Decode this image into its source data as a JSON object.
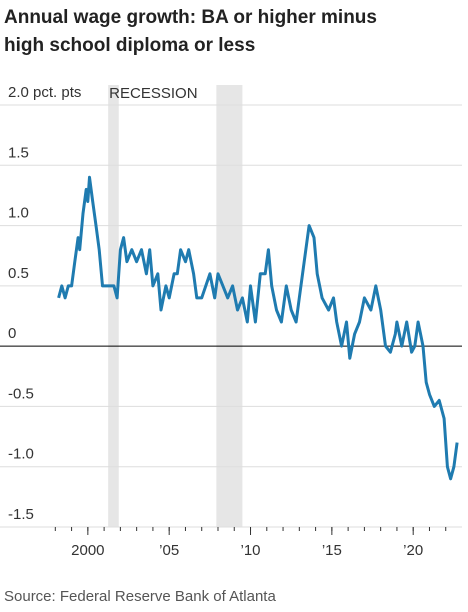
{
  "chart_data": {
    "type": "line",
    "title_lines": [
      "Annual wage growth: BA or higher minus",
      "high school diploma or less"
    ],
    "source": "Source: Federal Reserve Bank of Atlanta",
    "annotation": "RECESSION",
    "recessions": [
      [
        2001.25,
        2001.9
      ],
      [
        2007.9,
        2009.5
      ]
    ],
    "color": "#1f7bb0",
    "grid": true,
    "xlim": [
      1994.6,
      2023
    ],
    "ylim": [
      -1.5,
      2.0
    ],
    "xticks": [
      2000,
      {
        "value": 2005,
        "label": "’05"
      },
      {
        "value": 2010,
        "label": "’10"
      },
      {
        "value": 2015,
        "label": "’15"
      },
      {
        "value": 2020,
        "label": "’20"
      }
    ],
    "xticks_minor": [
      1998,
      1999,
      2000,
      2001,
      2002,
      2003,
      2004,
      2005,
      2006,
      2007,
      2008,
      2009,
      2010,
      2011,
      2012,
      2013,
      2014,
      2015,
      2016,
      2017,
      2018,
      2019,
      2020,
      2021,
      2022
    ],
    "yticks": [
      {
        "value": 2.0,
        "label": "2.0 pct. pts"
      },
      1.5,
      {
        "value": 1.0,
        "label": "1.0"
      },
      0.5,
      0,
      -0.5,
      {
        "value": -1.0,
        "label": "-1.0"
      },
      -1.5
    ],
    "x": [
      1998.2,
      1998.4,
      1998.6,
      1998.8,
      1999.0,
      1999.2,
      1999.4,
      1999.5,
      1999.7,
      1999.9,
      2000.0,
      2000.1,
      2000.3,
      2000.5,
      2000.7,
      2000.9,
      2001.2,
      2001.6,
      2001.8,
      2002.0,
      2002.2,
      2002.4,
      2002.7,
      2003.0,
      2003.3,
      2003.6,
      2003.8,
      2004.0,
      2004.3,
      2004.5,
      2004.8,
      2005.0,
      2005.3,
      2005.5,
      2005.7,
      2006.0,
      2006.2,
      2006.5,
      2006.7,
      2007.0,
      2007.5,
      2007.8,
      2008.0,
      2008.3,
      2008.6,
      2008.9,
      2009.2,
      2009.5,
      2009.8,
      2010.0,
      2010.3,
      2010.6,
      2010.9,
      2011.1,
      2011.3,
      2011.6,
      2011.9,
      2012.2,
      2012.5,
      2012.8,
      2013.0,
      2013.3,
      2013.6,
      2013.9,
      2014.1,
      2014.4,
      2014.8,
      2015.1,
      2015.3,
      2015.6,
      2015.9,
      2016.1,
      2016.4,
      2016.7,
      2017.0,
      2017.4,
      2017.7,
      2018.0,
      2018.3,
      2018.6,
      2018.9,
      2019.0,
      2019.3,
      2019.6,
      2019.9,
      2020.1,
      2020.3,
      2020.6,
      2020.8,
      2021.0,
      2021.3,
      2021.6,
      2021.9,
      2022.1,
      2022.3,
      2022.5,
      2022.7
    ],
    "values": [
      0.4,
      0.5,
      0.4,
      0.5,
      0.5,
      0.7,
      0.9,
      0.8,
      1.1,
      1.3,
      1.2,
      1.4,
      1.2,
      1.0,
      0.8,
      0.5,
      0.5,
      0.5,
      0.4,
      0.8,
      0.9,
      0.7,
      0.8,
      0.7,
      0.8,
      0.6,
      0.8,
      0.5,
      0.6,
      0.3,
      0.5,
      0.4,
      0.6,
      0.6,
      0.8,
      0.7,
      0.8,
      0.6,
      0.4,
      0.4,
      0.6,
      0.4,
      0.6,
      0.5,
      0.4,
      0.5,
      0.3,
      0.4,
      0.2,
      0.5,
      0.2,
      0.6,
      0.6,
      0.8,
      0.5,
      0.3,
      0.2,
      0.5,
      0.3,
      0.2,
      0.4,
      0.7,
      1.0,
      0.9,
      0.6,
      0.4,
      0.3,
      0.4,
      0.2,
      0.0,
      0.2,
      -0.1,
      0.1,
      0.2,
      0.4,
      0.3,
      0.5,
      0.3,
      0.0,
      -0.05,
      0.1,
      0.2,
      0.0,
      0.2,
      -0.05,
      0.0,
      0.2,
      0.0,
      -0.3,
      -0.4,
      -0.5,
      -0.45,
      -0.6,
      -1.0,
      -1.1,
      -1.0,
      -0.8
    ]
  }
}
